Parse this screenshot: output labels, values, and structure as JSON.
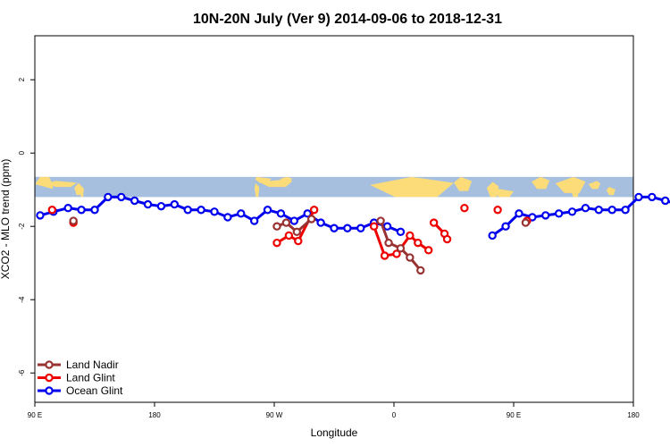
{
  "chart_data": {
    "type": "line",
    "title": "10N-20N July (Ver 9)   2014-09-06 to 2018-12-31",
    "xlabel": "Longitude",
    "ylabel": "XCO2 - MLO trend (ppm)",
    "xlim": [
      90,
      450
    ],
    "ylim": [
      -6.8,
      3.2
    ],
    "xticks": [
      {
        "value": 90,
        "label": "90 E"
      },
      {
        "value": 180,
        "label": "180"
      },
      {
        "value": 270,
        "label": "90 W"
      },
      {
        "value": 360,
        "label": "0"
      },
      {
        "value": 450,
        "label": "90 E"
      },
      {
        "value": 540,
        "label": "180"
      }
    ],
    "yticks": [
      {
        "value": -6,
        "label": "-6"
      },
      {
        "value": -4,
        "label": "-4"
      },
      {
        "value": -2,
        "label": "-2"
      },
      {
        "value": 0,
        "label": "0"
      },
      {
        "value": 2,
        "label": "2"
      }
    ],
    "grid": false,
    "legend_position": "bottom-left",
    "background_map": {
      "y_from": -1.2,
      "y_to": -0.65,
      "ocean_color": "#a7bfdf",
      "land_color": "#fcdc78"
    },
    "series": [
      {
        "name": "Ocean Glint",
        "color": "#0000ee",
        "segments": [
          {
            "x": [
              94,
              104,
              115,
              125,
              135,
              145,
              155,
              165,
              175,
              185,
              195,
              205,
              215,
              225,
              235,
              245,
              255,
              265,
              275,
              285,
              295,
              305,
              315,
              325,
              335,
              345,
              355,
              365
            ],
            "y": [
              -1.7,
              -1.6,
              -1.5,
              -1.55,
              -1.55,
              -1.2,
              -1.2,
              -1.3,
              -1.4,
              -1.45,
              -1.4,
              -1.55,
              -1.55,
              -1.6,
              -1.75,
              -1.65,
              -1.85,
              -1.55,
              -1.65,
              -1.85,
              -1.65,
              -1.9,
              -2.05,
              -2.05,
              -2.05,
              -1.9,
              -2.0,
              -2.15
            ]
          },
          {
            "x": [
              434,
              444,
              454,
              464,
              474,
              484,
              494,
              504,
              514,
              524,
              534,
              544,
              554,
              564,
              574,
              584,
              594,
              600
            ],
            "y": [
              -2.25,
              -2.0,
              -1.65,
              -1.75,
              -1.7,
              -1.65,
              -1.6,
              -1.5,
              -1.55,
              -1.55,
              -1.55,
              -1.2,
              -1.2,
              -1.3,
              -1.4,
              -1.45,
              -1.4,
              -1.45
            ]
          }
        ]
      },
      {
        "name": "Land Glint",
        "color": "#ee0000",
        "segments": [
          {
            "x": [
              103
            ],
            "y": [
              -1.55
            ]
          },
          {
            "x": [
              119
            ],
            "y": [
              -1.9
            ]
          },
          {
            "x": [
              272,
              281,
              288,
              300
            ],
            "y": [
              -2.45,
              -2.25,
              -2.4,
              -1.55
            ]
          },
          {
            "x": [
              345,
              353,
              362,
              372,
              378,
              386
            ],
            "y": [
              -2.0,
              -2.8,
              -2.75,
              -2.25,
              -2.45,
              -2.65
            ]
          },
          {
            "x": [
              390,
              398,
              400
            ],
            "y": [
              -1.9,
              -2.2,
              -2.35
            ]
          },
          {
            "x": [
              413
            ],
            "y": [
              -1.5
            ]
          },
          {
            "x": [
              438
            ],
            "y": [
              -1.55
            ]
          },
          {
            "x": [
              460
            ],
            "y": [
              -1.85
            ]
          }
        ]
      },
      {
        "name": "Land Nadir",
        "color": "#993333",
        "segments": [
          {
            "x": [
              119
            ],
            "y": [
              -1.85
            ]
          },
          {
            "x": [
              272,
              279,
              287,
              298
            ],
            "y": [
              -2.0,
              -1.9,
              -2.15,
              -1.8
            ]
          },
          {
            "x": [
              350,
              356,
              365,
              372,
              380
            ],
            "y": [
              -1.85,
              -2.45,
              -2.6,
              -2.85,
              -3.2
            ]
          },
          {
            "x": [
              459
            ],
            "y": [
              -1.9
            ]
          }
        ]
      }
    ],
    "legend_entries": [
      {
        "label": "Land Nadir",
        "color": "#993333"
      },
      {
        "label": "Land Glint",
        "color": "#ee0000"
      },
      {
        "label": "Ocean Glint",
        "color": "#0000ee"
      }
    ]
  }
}
